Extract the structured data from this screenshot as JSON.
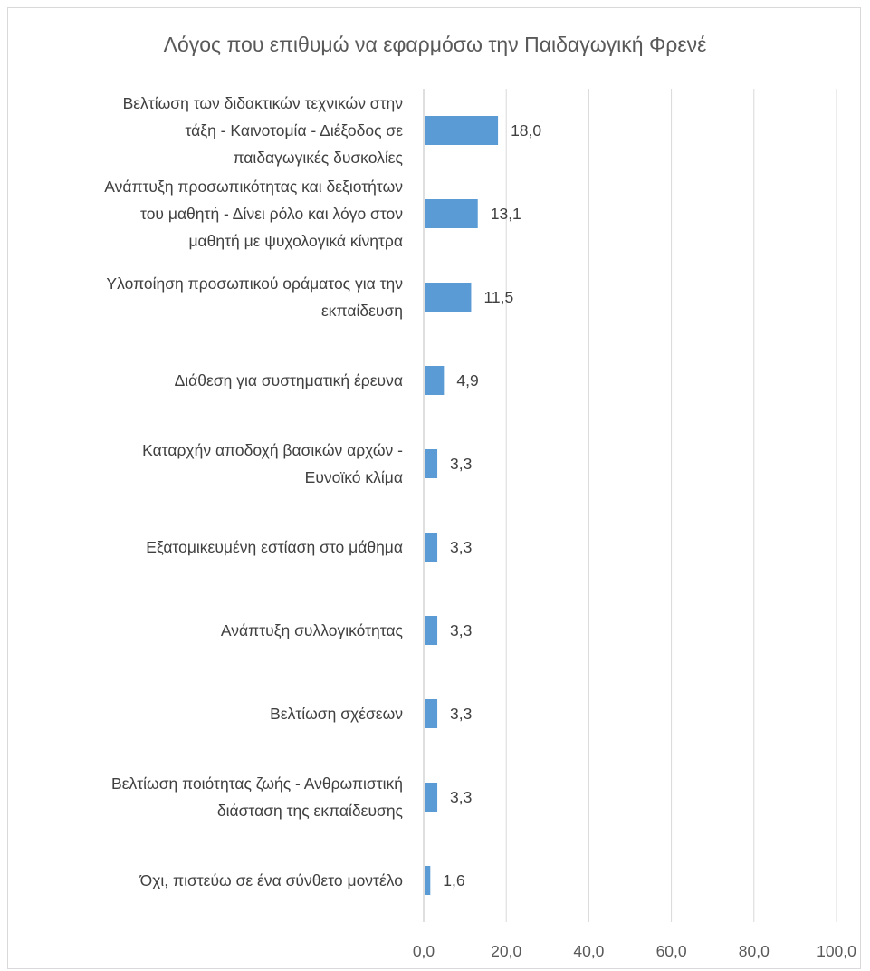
{
  "chart_data": {
    "type": "bar",
    "orientation": "horizontal",
    "title": "Λόγος που επιθυμώ να εφαρμόσω την Παιδαγωγική Φρενέ",
    "xlabel": "",
    "ylabel": "",
    "xlim": [
      0,
      100
    ],
    "x_ticks": [
      "0,0",
      "20,0",
      "40,0",
      "60,0",
      "80,0",
      "100,0"
    ],
    "grid": "vertical",
    "bar_color": "#5b9bd5",
    "categories": [
      [
        "Βελτίωση των διδακτικών τεχνικών στην",
        "τάξη - Καινοτομία - Διέξοδος σε",
        "παιδαγωγικές δυσκολίες"
      ],
      [
        "Ανάπτυξη προσωπικότητας και δεξιοτήτων",
        "του μαθητή - Δίνει ρόλο και λόγο στον",
        "μαθητή με ψυχολογικά κίνητρα"
      ],
      [
        "Υλοποίηση προσωπικού οράματος για την",
        "εκπαίδευση"
      ],
      [
        "Διάθεση για συστηματική έρευνα"
      ],
      [
        "Καταρχήν αποδοχή βασικών αρχών -",
        "Ευνοϊκό κλίμα"
      ],
      [
        "Εξατομικευμένη εστίαση στο μάθημα"
      ],
      [
        "Ανάπτυξη συλλογικότητας"
      ],
      [
        "Βελτίωση σχέσεων"
      ],
      [
        "Βελτίωση ποιότητας ζωής - Ανθρωπιστική",
        "διάσταση της εκπαίδευσης"
      ],
      [
        "Όχι, πιστεύω σε ένα σύνθετο μοντέλο"
      ]
    ],
    "values": [
      18.0,
      13.1,
      11.5,
      4.9,
      3.3,
      3.3,
      3.3,
      3.3,
      3.3,
      1.6
    ],
    "value_labels": [
      "18,0",
      "13,1",
      "11,5",
      "4,9",
      "3,3",
      "3,3",
      "3,3",
      "3,3",
      "3,3",
      "1,6"
    ]
  }
}
